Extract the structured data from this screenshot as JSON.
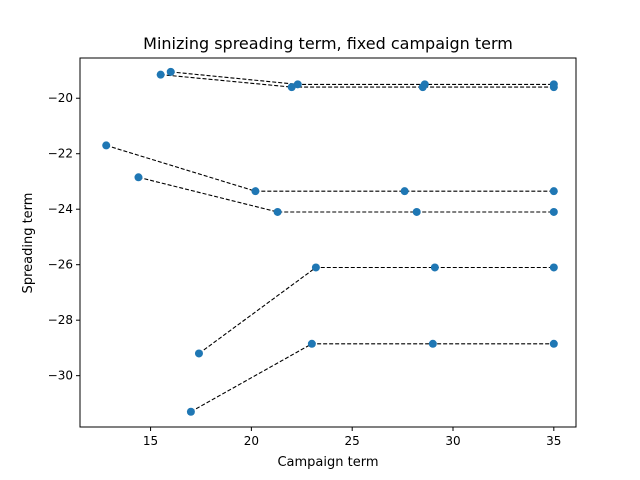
{
  "chart_data": {
    "type": "scatter",
    "title": "Minizing spreading term, fixed campaign term",
    "xlabel": "Campaign term",
    "ylabel": "Spreading term",
    "xlim": [
      11.5,
      36.1
    ],
    "ylim": [
      -31.85,
      -18.55
    ],
    "xticks": [
      15,
      20,
      25,
      30,
      35
    ],
    "yticks": [
      -30,
      -28,
      -26,
      -24,
      -22,
      -20
    ],
    "xtick_labels": [
      "15",
      "20",
      "25",
      "30",
      "35"
    ],
    "ytick_labels": [
      "−30",
      "−28",
      "−26",
      "−24",
      "−22",
      "−20"
    ],
    "grid": false,
    "legend": "none",
    "marker_color": "#1f77b4",
    "line_color": "#000000",
    "line_style": "dashed",
    "series": [
      {
        "x": [
          15.5,
          22.0,
          28.5,
          35.0
        ],
        "y": [
          -19.15,
          -19.6,
          -19.6,
          -19.6
        ]
      },
      {
        "x": [
          16.0,
          22.3,
          28.6,
          35.0
        ],
        "y": [
          -19.05,
          -19.5,
          -19.5,
          -19.5
        ]
      },
      {
        "x": [
          12.8,
          20.2,
          27.6,
          35.0
        ],
        "y": [
          -21.7,
          -23.35,
          -23.35,
          -23.35
        ]
      },
      {
        "x": [
          14.4,
          21.3,
          28.2,
          35.0
        ],
        "y": [
          -22.85,
          -24.1,
          -24.1,
          -24.1
        ]
      },
      {
        "x": [
          17.4,
          23.2,
          29.1,
          35.0
        ],
        "y": [
          -29.2,
          -26.1,
          -26.1,
          -26.1
        ]
      },
      {
        "x": [
          17.0,
          23.0,
          29.0,
          35.0
        ],
        "y": [
          -31.3,
          -28.85,
          -28.85,
          -28.85
        ]
      }
    ]
  }
}
